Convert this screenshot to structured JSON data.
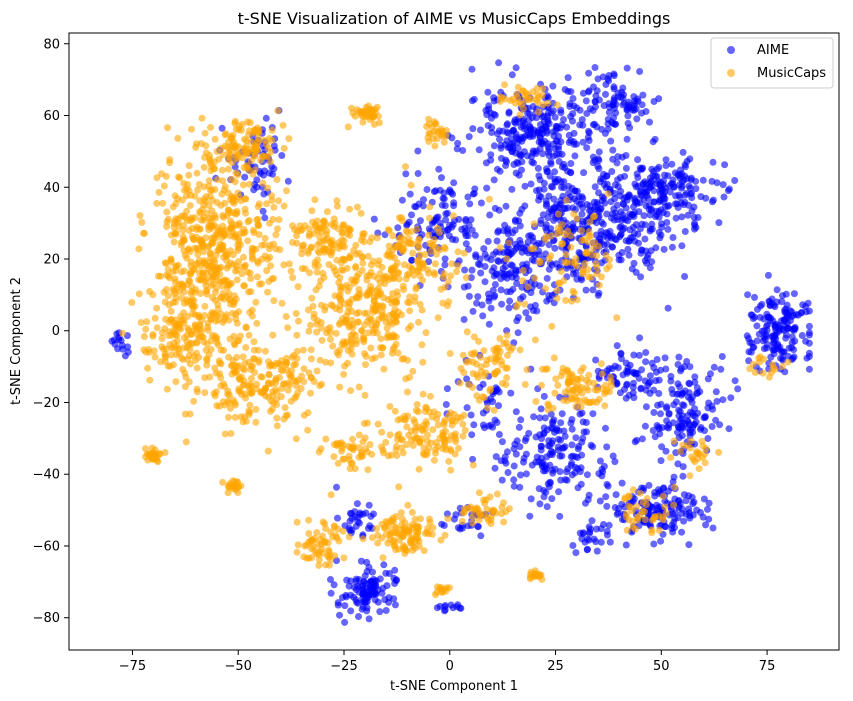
{
  "chart_data": {
    "type": "scatter",
    "title": "t-SNE Visualization of AIME vs MusicCaps Embeddings",
    "xlabel": "t-SNE Component 1",
    "ylabel": "t-SNE Component 2",
    "xlim": [
      -90,
      92
    ],
    "ylim": [
      -89,
      83
    ],
    "xticks": [
      -75,
      -50,
      -25,
      0,
      25,
      50,
      75
    ],
    "yticks": [
      -80,
      -60,
      -40,
      -20,
      0,
      20,
      40,
      60,
      80
    ],
    "grid": false,
    "legend_position": "top-right",
    "marker_alpha": 0.6,
    "series": [
      {
        "name": "AIME",
        "color": "#0000ff",
        "clusters": [
          {
            "cx": 35,
            "cy": 30,
            "sx": 14,
            "sy": 12,
            "n": 420
          },
          {
            "cx": 20,
            "cy": 55,
            "sx": 10,
            "sy": 10,
            "n": 260
          },
          {
            "cx": 38,
            "cy": 62,
            "sx": 6,
            "sy": 6,
            "n": 90
          },
          {
            "cx": 52,
            "cy": 40,
            "sx": 7,
            "sy": 6,
            "n": 120
          },
          {
            "cx": 15,
            "cy": 18,
            "sx": 10,
            "sy": 10,
            "n": 180
          },
          {
            "cx": -2,
            "cy": 30,
            "sx": 8,
            "sy": 9,
            "n": 110
          },
          {
            "cx": 78,
            "cy": 0,
            "sx": 5,
            "sy": 7,
            "n": 160
          },
          {
            "cx": 55,
            "cy": -22,
            "sx": 6,
            "sy": 10,
            "n": 150
          },
          {
            "cx": 50,
            "cy": -50,
            "sx": 8,
            "sy": 5,
            "n": 150
          },
          {
            "cx": 25,
            "cy": -35,
            "sx": 9,
            "sy": 9,
            "n": 170
          },
          {
            "cx": 42,
            "cy": -12,
            "sx": 5,
            "sy": 5,
            "n": 60
          },
          {
            "cx": 33,
            "cy": -58,
            "sx": 3,
            "sy": 3,
            "n": 25
          },
          {
            "cx": -45,
            "cy": 45,
            "sx": 5,
            "sy": 8,
            "n": 60
          },
          {
            "cx": -20,
            "cy": -72,
            "sx": 5,
            "sy": 5,
            "n": 110
          },
          {
            "cx": -22,
            "cy": -52,
            "sx": 4,
            "sy": 3,
            "n": 30
          },
          {
            "cx": 0,
            "cy": -77,
            "sx": 2,
            "sy": 1,
            "n": 12
          },
          {
            "cx": -78,
            "cy": -3,
            "sx": 2,
            "sy": 3,
            "n": 15
          },
          {
            "cx": 8,
            "cy": -20,
            "sx": 6,
            "sy": 6,
            "n": 40
          },
          {
            "cx": 5,
            "cy": -52,
            "sx": 4,
            "sy": 3,
            "n": 25
          }
        ]
      },
      {
        "name": "MusicCaps",
        "color": "#ffa500",
        "clusters": [
          {
            "cx": -55,
            "cy": 25,
            "sx": 10,
            "sy": 16,
            "n": 500
          },
          {
            "cx": -62,
            "cy": 0,
            "sx": 8,
            "sy": 10,
            "n": 180
          },
          {
            "cx": -45,
            "cy": -15,
            "sx": 10,
            "sy": 8,
            "n": 200
          },
          {
            "cx": -20,
            "cy": 5,
            "sx": 10,
            "sy": 12,
            "n": 300
          },
          {
            "cx": -8,
            "cy": 20,
            "sx": 8,
            "sy": 10,
            "n": 120
          },
          {
            "cx": -30,
            "cy": 25,
            "sx": 6,
            "sy": 6,
            "n": 100
          },
          {
            "cx": -20,
            "cy": 60,
            "sx": 3,
            "sy": 2,
            "n": 40
          },
          {
            "cx": -48,
            "cy": 52,
            "sx": 5,
            "sy": 5,
            "n": 100
          },
          {
            "cx": -70,
            "cy": -35,
            "sx": 1.5,
            "sy": 1.5,
            "n": 30
          },
          {
            "cx": -51,
            "cy": -43,
            "sx": 1.2,
            "sy": 1.2,
            "n": 20
          },
          {
            "cx": -10,
            "cy": -57,
            "sx": 5,
            "sy": 4,
            "n": 100
          },
          {
            "cx": -30,
            "cy": -60,
            "sx": 4,
            "sy": 5,
            "n": 60
          },
          {
            "cx": -5,
            "cy": -28,
            "sx": 8,
            "sy": 6,
            "n": 120
          },
          {
            "cx": 10,
            "cy": -10,
            "sx": 6,
            "sy": 6,
            "n": 70
          },
          {
            "cx": 30,
            "cy": -15,
            "sx": 5,
            "sy": 5,
            "n": 80
          },
          {
            "cx": 20,
            "cy": -68,
            "sx": 1.5,
            "sy": 1,
            "n": 20
          },
          {
            "cx": -3,
            "cy": 55,
            "sx": 2,
            "sy": 2,
            "n": 25
          },
          {
            "cx": 8,
            "cy": -50,
            "sx": 4,
            "sy": 3,
            "n": 40
          },
          {
            "cx": 18,
            "cy": 65,
            "sx": 4,
            "sy": 3,
            "n": 35
          },
          {
            "cx": 45,
            "cy": -50,
            "sx": 4,
            "sy": 4,
            "n": 40
          },
          {
            "cx": 28,
            "cy": 20,
            "sx": 8,
            "sy": 10,
            "n": 90
          },
          {
            "cx": -2,
            "cy": -72,
            "sx": 1.5,
            "sy": 1.5,
            "n": 12
          },
          {
            "cx": 75,
            "cy": -10,
            "sx": 3,
            "sy": 3,
            "n": 15
          },
          {
            "cx": 58,
            "cy": -35,
            "sx": 4,
            "sy": 4,
            "n": 25
          },
          {
            "cx": -22,
            "cy": -33,
            "sx": 6,
            "sy": 4,
            "n": 50
          }
        ]
      }
    ]
  }
}
